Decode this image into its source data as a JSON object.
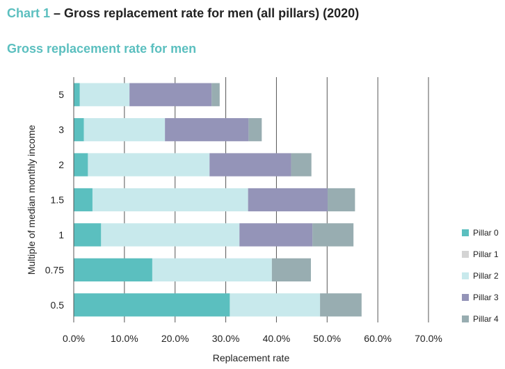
{
  "heading": {
    "prefix": "Chart 1",
    "text": " – Gross replacement rate for men (all pillars) (2020)"
  },
  "subheading": "Gross replacement rate for men",
  "colors": {
    "pillar_0": "#5bbfbf",
    "pillar_1": "#d4d4d4",
    "pillar_2": "#c8e9ec",
    "pillar_3": "#9494b8",
    "pillar_4": "#98adb1",
    "gridline": "#555555"
  },
  "chart_data": {
    "type": "bar",
    "orientation": "horizontal",
    "stacked": true,
    "categories": [
      "5",
      "3",
      "2",
      "1.5",
      "1",
      "0.75",
      "0.5"
    ],
    "series": [
      {
        "name": "Pillar 0",
        "values": [
          1.2,
          2.0,
          2.8,
          3.7,
          5.4,
          15.5,
          30.8
        ]
      },
      {
        "name": "Pillar 1",
        "values": [
          0,
          0,
          0,
          0,
          0,
          0,
          0
        ]
      },
      {
        "name": "Pillar 2",
        "values": [
          9.8,
          16.0,
          24.0,
          30.7,
          27.3,
          23.6,
          17.8
        ]
      },
      {
        "name": "Pillar 3",
        "values": [
          16.2,
          16.5,
          16.1,
          15.7,
          14.4,
          0,
          0
        ]
      },
      {
        "name": "Pillar 4",
        "values": [
          1.6,
          2.6,
          4.0,
          5.4,
          8.1,
          7.7,
          8.2
        ]
      }
    ],
    "xlabel": "Replacement rate",
    "ylabel": "Multiple of median monthly income",
    "xlim": [
      0,
      70
    ],
    "xticks": [
      "0.0%",
      "10.0%",
      "20.0%",
      "30.0%",
      "40.0%",
      "50.0%",
      "60.0%",
      "70.0%"
    ],
    "grid": "vertical",
    "legend_position": "right"
  }
}
